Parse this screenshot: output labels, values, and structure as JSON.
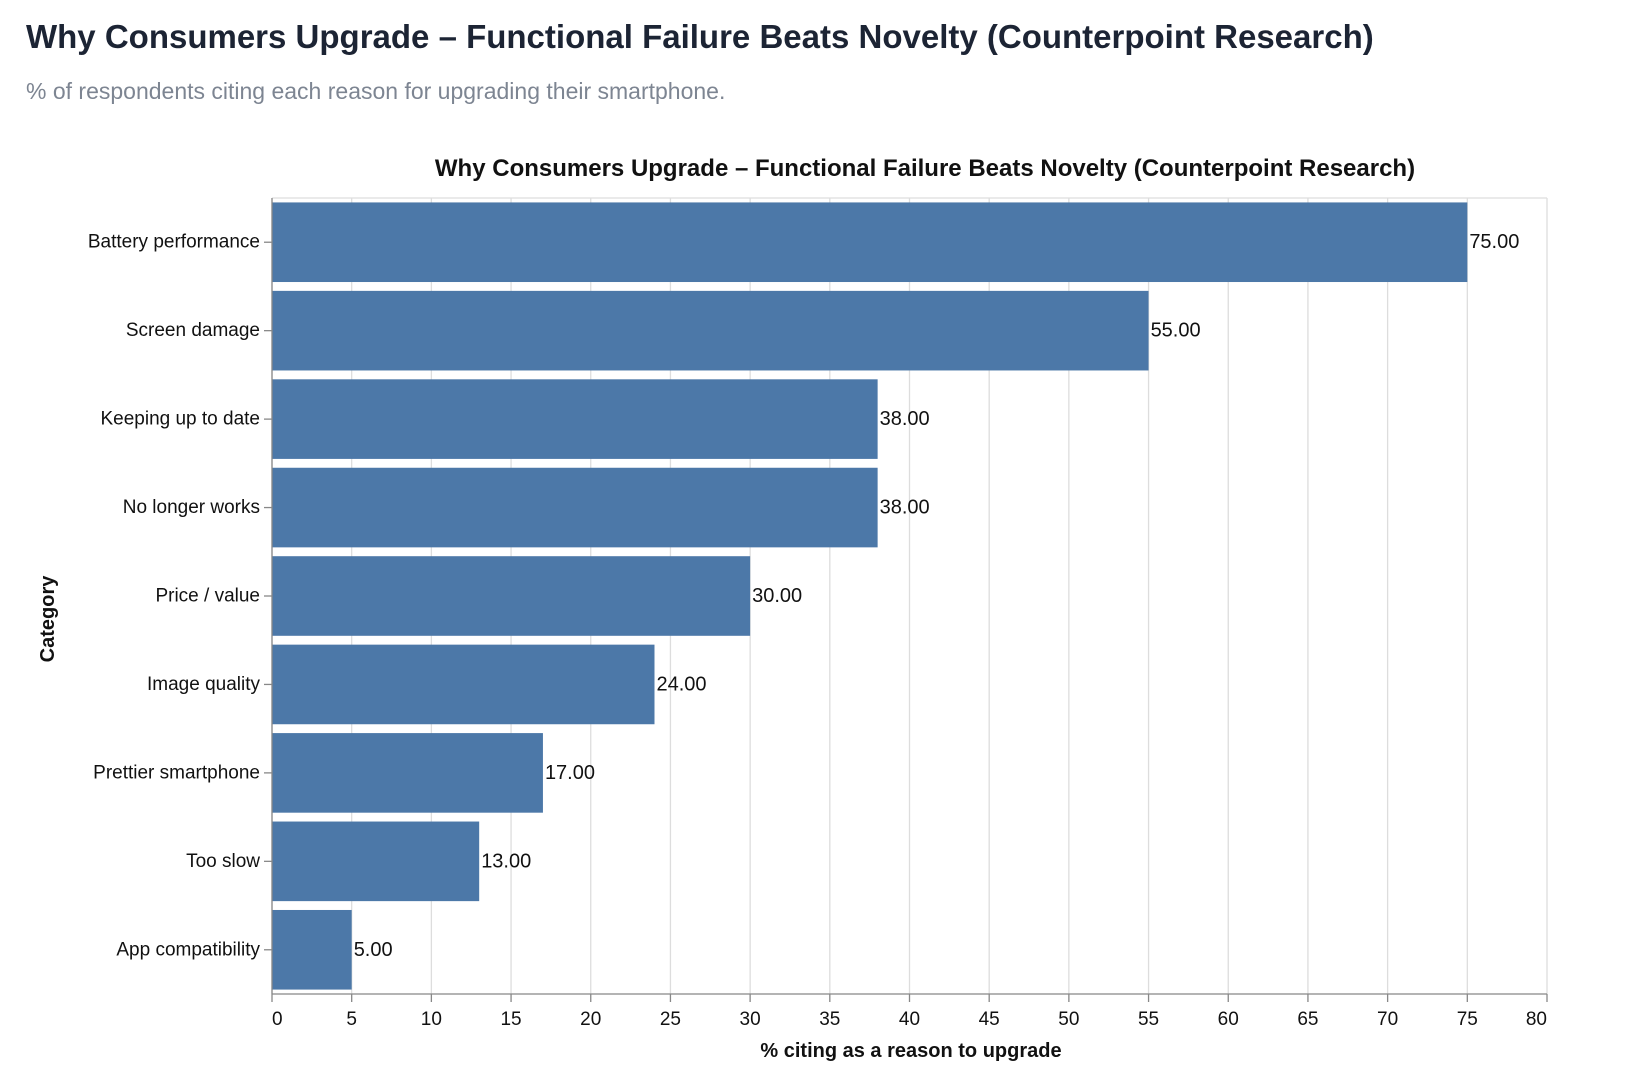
{
  "header": {
    "title": "Why Consumers Upgrade – Functional Failure Beats Novelty (Counterpoint Research)",
    "subtitle": "% of respondents citing each reason for upgrading their smartphone."
  },
  "chart_data": {
    "type": "bar",
    "orientation": "horizontal",
    "title": "Why Consumers Upgrade – Functional Failure Beats Novelty (Counterpoint Research)",
    "xlabel": "% citing as a reason to upgrade",
    "ylabel": "Category",
    "categories": [
      "Battery performance",
      "Screen damage",
      "Keeping up to date",
      "No longer works",
      "Price / value",
      "Image quality",
      "Prettier smartphone",
      "Too slow",
      "App compatibility"
    ],
    "values": [
      75,
      55,
      38,
      38,
      30,
      24,
      17,
      13,
      5
    ],
    "data_labels": [
      "75.00",
      "55.00",
      "38.00",
      "38.00",
      "30.00",
      "24.00",
      "17.00",
      "13.00",
      "5.00"
    ],
    "xlim": [
      0,
      80
    ],
    "xticks": [
      0,
      5,
      10,
      15,
      20,
      25,
      30,
      35,
      40,
      45,
      50,
      55,
      60,
      65,
      70,
      75,
      80
    ],
    "grid": true,
    "colors": {
      "bar": "#4c78a8",
      "grid": "#dddddd",
      "axis": "#888888"
    }
  }
}
